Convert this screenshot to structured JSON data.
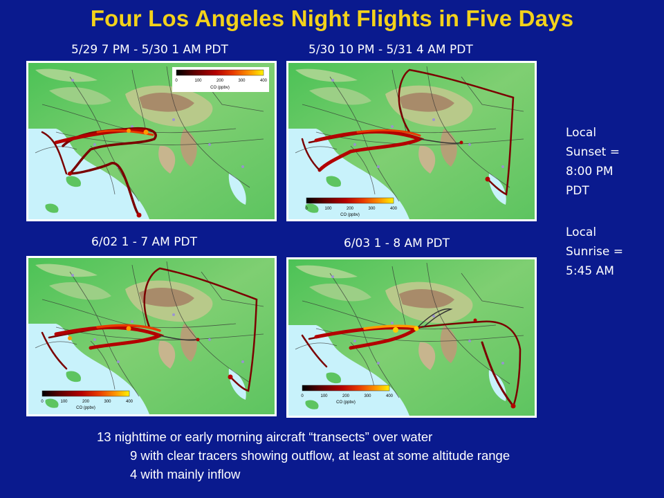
{
  "title": "Four Los Angeles Night Flights in Five Days",
  "panels": [
    {
      "caption": "5/29 7 PM - 5/30 1 AM PDT"
    },
    {
      "caption": "5/30 10 PM - 5/31 4 AM PDT"
    },
    {
      "caption": "6/02 1 - 7 AM PDT"
    },
    {
      "caption": "6/03 1 - 8 AM PDT"
    }
  ],
  "colorbar": {
    "label": "CO (ppbv)",
    "ticks": [
      "0",
      "100",
      "200",
      "300",
      "400"
    ],
    "colors": [
      "#000000",
      "#5a0000",
      "#b30000",
      "#e83a00",
      "#ff9a00",
      "#fff200"
    ]
  },
  "sunset": {
    "line1": "Local",
    "line2": "Sunset =",
    "line3": "8:00 PM",
    "line4": "PDT"
  },
  "sunrise": {
    "line1": "Local",
    "line2": "Sunrise =",
    "line3": "5:45 AM"
  },
  "notes": {
    "line1": "13 nighttime or early morning aircraft “transects” over water",
    "line2": "9 with clear tracers showing outflow, at least at some altitude range",
    "line3": "4 with mainly inflow"
  },
  "colors": {
    "background": "#0a1a8e",
    "title": "#f3d21b",
    "ocean": "#c8f2fb",
    "land_low": "#3fbf4f",
    "land_mid": "#a8d68a",
    "track": "#7a0000"
  }
}
